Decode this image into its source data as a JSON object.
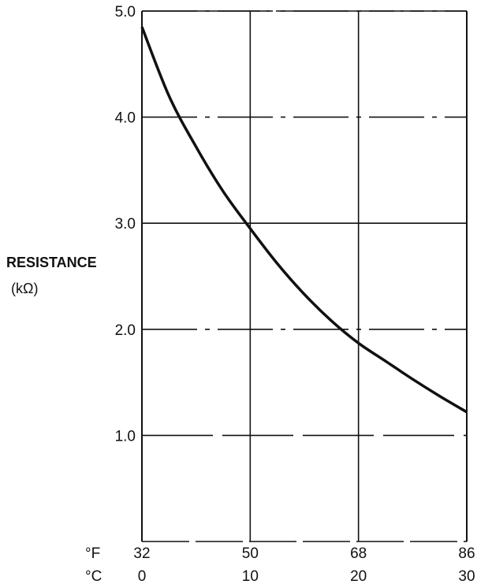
{
  "chart_data": {
    "type": "line",
    "title": "",
    "ylabel": "RESISTANCE",
    "yunit": "(kΩ)",
    "x_scales": [
      {
        "unit": "°F",
        "ticks": [
          "32",
          "50",
          "68",
          "86"
        ]
      },
      {
        "unit": "°C",
        "ticks": [
          "0",
          "10",
          "20",
          "30"
        ]
      }
    ],
    "y_ticks": [
      "1.0",
      "2.0",
      "3.0",
      "4.0",
      "5.0"
    ],
    "xlim": [
      0,
      30
    ],
    "ylim": [
      0,
      5.0
    ],
    "grid": true,
    "series": [
      {
        "x": [
          0,
          2.5,
          5,
          7.5,
          10,
          12.5,
          15,
          17.5,
          20,
          22.5,
          25,
          27.5,
          30
        ],
        "y": [
          4.85,
          4.2,
          3.72,
          3.3,
          2.95,
          2.62,
          2.33,
          2.08,
          1.87,
          1.7,
          1.53,
          1.37,
          1.22
        ]
      }
    ]
  }
}
